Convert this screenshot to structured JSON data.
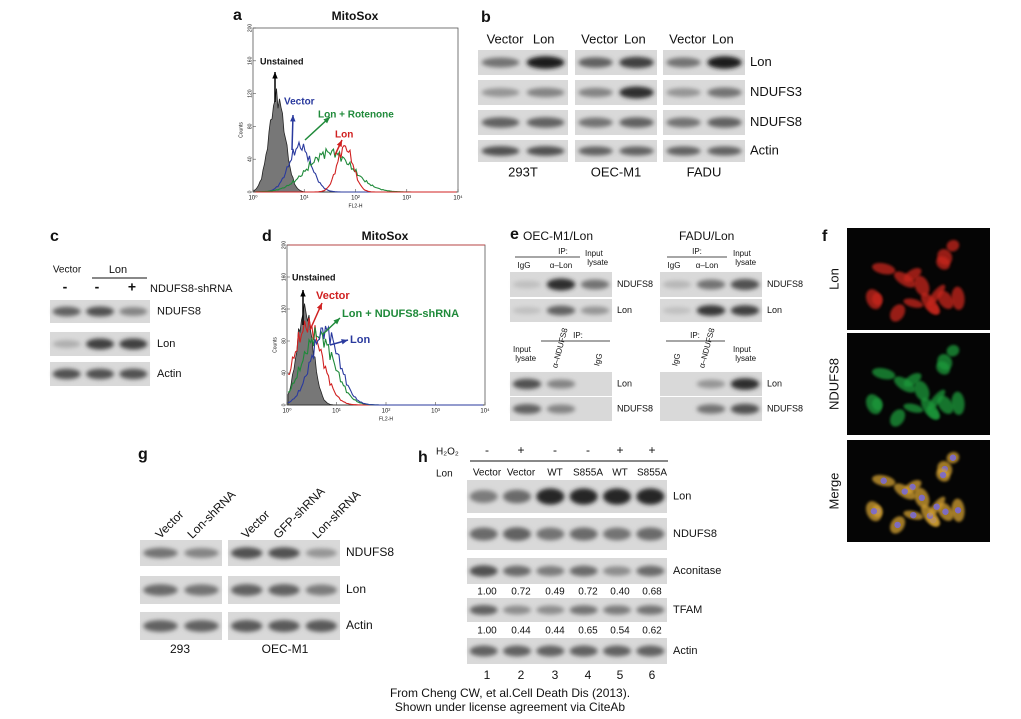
{
  "panel_a": {
    "letter": "a",
    "title": "MitoSox",
    "y_label": "Counts",
    "x_label": "FL2-H",
    "y_ticks": [
      "0",
      "40",
      "80",
      "120",
      "160",
      "200"
    ],
    "x_ticks": [
      "10⁰",
      "10¹",
      "10²",
      "10³",
      "10⁴"
    ],
    "curve_labels": [
      "Unstained",
      "Vector",
      "Lon + Rotenone",
      "Lon"
    ]
  },
  "panel_b": {
    "letter": "b",
    "lanes": [
      "Vector",
      "Lon",
      "Vector",
      "Lon",
      "Vector",
      "Lon"
    ],
    "rows": [
      "Lon",
      "NDUFS3",
      "NDUFS8",
      "Actin"
    ],
    "cells": [
      "293T",
      "OEC-M1",
      "FADU"
    ]
  },
  "panel_c": {
    "letter": "c",
    "groups": [
      "Vector",
      "Lon"
    ],
    "signs": [
      "-",
      "-",
      "+"
    ],
    "sign_label": "NDUFS8-shRNA",
    "rows": [
      "NDUFS8",
      "Lon",
      "Actin"
    ]
  },
  "panel_d": {
    "letter": "d",
    "title": "MitoSox",
    "y_label": "Counts",
    "x_label": "FL2-H",
    "y_ticks": [
      "0",
      "40",
      "80",
      "120",
      "160",
      "200"
    ],
    "x_ticks": [
      "10⁰",
      "10¹",
      "10²",
      "10³",
      "10⁴"
    ],
    "curve_labels": [
      "Unstained",
      "Vector",
      "Lon + NDUFS8-shRNA",
      "Lon"
    ]
  },
  "panel_e": {
    "letter": "e",
    "left_title": "OEC-M1/Lon",
    "right_title": "FADU/Lon",
    "top_left": {
      "ip": "IP:",
      "lanes": [
        "IgG",
        "α–Lon",
        "Input lysate"
      ],
      "rows": [
        "NDUFS8",
        "Lon"
      ]
    },
    "top_right": {
      "ip": "IP:",
      "lanes": [
        "IgG",
        "α–Lon",
        "Input lysate"
      ],
      "rows": [
        "NDUFS8",
        "Lon"
      ]
    },
    "bottom_left": {
      "ip": "IP:",
      "lanes": [
        "Input lysate",
        "α–NDUFS8",
        "IgG"
      ],
      "rows": [
        "Lon",
        "NDUFS8"
      ]
    },
    "bottom_right": {
      "ip": "IP:",
      "lanes": [
        "IgG",
        "α–NDUFS8",
        "Input lysate"
      ],
      "rows": [
        "Lon",
        "NDUFS8"
      ]
    }
  },
  "panel_f": {
    "letter": "f",
    "labels": [
      "Lon",
      "NDUFS8",
      "Merge"
    ]
  },
  "panel_g": {
    "letter": "g",
    "lanes": [
      "Vector",
      "Lon-shRNA",
      "Vector",
      "GFP-shRNA",
      "Lon-shRNA"
    ],
    "rows": [
      "NDUFS8",
      "Lon",
      "Actin"
    ],
    "cells": [
      "293",
      "OEC-M1"
    ]
  },
  "panel_h": {
    "letter": "h",
    "treatment": "H₂O₂",
    "construct": "Lon",
    "signs": [
      "-",
      "+",
      "-",
      "-",
      "+",
      "+"
    ],
    "lanes": [
      "Vector",
      "Vector",
      "WT",
      "S855A",
      "WT",
      "S855A"
    ],
    "rows": [
      "Lon",
      "NDUFS8",
      "Aconitase",
      "TFAM",
      "Actin"
    ],
    "aconitase_ratios": [
      "1.00",
      "0.72",
      "0.49",
      "0.72",
      "0.40",
      "0.68"
    ],
    "tfam_ratios": [
      "1.00",
      "0.44",
      "0.44",
      "0.65",
      "0.54",
      "0.62"
    ],
    "lane_numbers": [
      "1",
      "2",
      "3",
      "4",
      "5",
      "6"
    ]
  },
  "footer": [
    "From Cheng CW, et al.Cell Death Dis (2013).",
    "Shown under license agreement via CiteAb"
  ]
}
